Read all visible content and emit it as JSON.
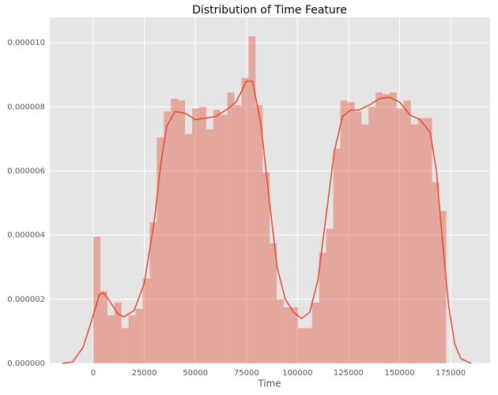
{
  "chart_data": {
    "type": "histogram",
    "title": "Distribution of Time Feature",
    "xlabel": "Time",
    "bins": [
      0,
      3456,
      6912,
      10368,
      13824,
      17280,
      20736,
      24192,
      27648,
      31104,
      34560,
      38016,
      41472,
      44928,
      48384,
      51840,
      55296,
      58752,
      62208,
      65664,
      69120,
      72576,
      76032,
      79488,
      82944,
      86400,
      89856,
      93312,
      96768,
      100224,
      103680,
      107136,
      110592,
      114048,
      117504,
      120960,
      124416,
      127872,
      131328,
      134784,
      138240,
      141696,
      145152,
      148608,
      152064,
      155520,
      158976,
      162432,
      165888,
      169344,
      172800
    ],
    "values": [
      3.95e-06,
      2.25e-06,
      1.5e-06,
      1.9e-06,
      1.1e-06,
      1.5e-06,
      1.7e-06,
      2.65e-06,
      4.4e-06,
      7.05e-06,
      7.85e-06,
      8.25e-06,
      8.2e-06,
      7.15e-06,
      7.95e-06,
      8e-06,
      7.3e-06,
      7.9e-06,
      7.75e-06,
      8.45e-06,
      8.05e-06,
      8.9e-06,
      1.02e-05,
      8.05e-06,
      5.95e-06,
      3.75e-06,
      2e-06,
      1.75e-06,
      1.75e-06,
      1.1e-06,
      1.1e-06,
      1.9e-06,
      3.45e-06,
      4.2e-06,
      6.7e-06,
      8.2e-06,
      8.15e-06,
      7.85e-06,
      7.45e-06,
      8e-06,
      8.45e-06,
      8.4e-06,
      8.45e-06,
      7.95e-06,
      8.2e-06,
      7.45e-06,
      7.65e-06,
      7.65e-06,
      5.65e-06,
      4.75e-06
    ],
    "color": "#e24a33",
    "opacity": 0.4,
    "kde": {
      "type": "line",
      "color": "#e24a33",
      "x": [
        -15000,
        -10000,
        -5000,
        0,
        3000,
        5000,
        8000,
        12000,
        15000,
        20000,
        25000,
        30000,
        33000,
        36000,
        40000,
        45000,
        50000,
        55000,
        60000,
        65000,
        70000,
        75000,
        78000,
        82000,
        86000,
        90000,
        94000,
        98000,
        102000,
        106000,
        110000,
        114000,
        118000,
        122000,
        126000,
        130000,
        135000,
        140000,
        145000,
        150000,
        155000,
        160000,
        165000,
        168000,
        171000,
        174000,
        177000,
        180000,
        185000
      ],
      "values": [
        0,
        5e-08,
        5e-07,
        1.5e-06,
        2.15e-06,
        2.2e-06,
        1.95e-06,
        1.55e-06,
        1.45e-06,
        1.65e-06,
        2.5e-06,
        4.5e-06,
        6.2e-06,
        7.4e-06,
        7.85e-06,
        7.8e-06,
        7.6e-06,
        7.65e-06,
        7.7e-06,
        7.9e-06,
        8.15e-06,
        8.8e-06,
        8.8e-06,
        7.5e-06,
        5.2e-06,
        3e-06,
        2e-06,
        1.6e-06,
        1.4e-06,
        1.6e-06,
        2.6e-06,
        4.6e-06,
        6.6e-06,
        7.7e-06,
        7.9e-06,
        7.9e-06,
        8.05e-06,
        8.25e-06,
        8.3e-06,
        8.15e-06,
        7.75e-06,
        7.6e-06,
        7.2e-06,
        6e-06,
        3.8e-06,
        1.8e-06,
        6e-07,
        1.5e-07,
        0
      ]
    },
    "xlim": [
      -21300,
      194300
    ],
    "ylim": [
      0,
      1.079e-05
    ],
    "xticks": [
      0,
      25000,
      50000,
      75000,
      100000,
      125000,
      150000,
      175000
    ],
    "yticks": [
      {
        "value": 0,
        "label": "0.000000"
      },
      {
        "value": 2e-06,
        "label": "0.000002"
      },
      {
        "value": 4e-06,
        "label": "0.000004"
      },
      {
        "value": 6e-06,
        "label": "0.000006"
      },
      {
        "value": 8e-06,
        "label": "0.000008"
      },
      {
        "value": 1e-05,
        "label": "0.000010"
      }
    ],
    "grid": true,
    "background": "#e5e5e5"
  }
}
